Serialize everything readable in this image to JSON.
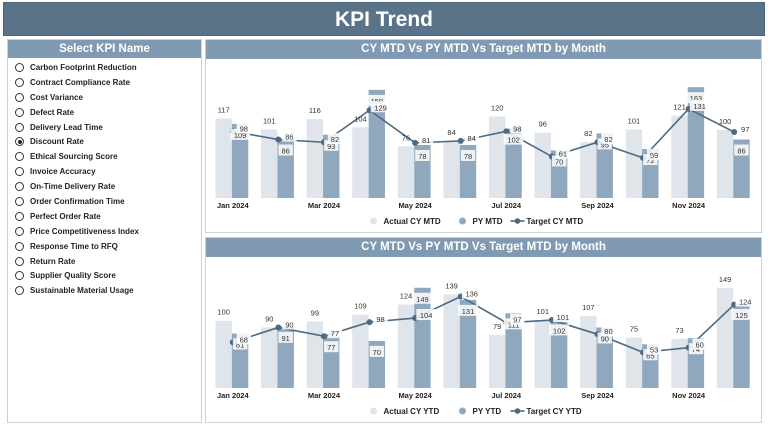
{
  "page_title": "KPI Trend",
  "slicer": {
    "title": "Select KPI Name",
    "selected_index": 5,
    "items": [
      "Carbon Footprint Reduction",
      "Contract Compliance Rate",
      "Cost Variance",
      "Defect Rate",
      "Delivery Lead Time",
      "Discount Rate",
      "Ethical Sourcing Score",
      "Invoice Accuracy",
      "On-Time Delivery Rate",
      "Order Confirmation Time",
      "Perfect Order Rate",
      "Price Competitiveness Index",
      "Response Time to RFQ",
      "Return Rate",
      "Supplier Quality Score",
      "Sustainable Material Usage"
    ]
  },
  "colors": {
    "header": "#5b7388",
    "panel_header": "#7f9ab2",
    "actual": "#dfe5eb",
    "prior": "#8fa8be",
    "target": "#4e6a82"
  },
  "chart_data": [
    {
      "type": "bar",
      "title": "CY MTD Vs PY MTD Vs Target MTD by Month",
      "categories": [
        "Jan 2024",
        "Feb 2024",
        "Mar 2024",
        "Apr 2024",
        "May 2024",
        "Jun 2024",
        "Jul 2024",
        "Aug 2024",
        "Sep 2024",
        "Oct 2024",
        "Nov 2024",
        "Dec 2024"
      ],
      "x_tick_labels": [
        "Jan 2024",
        "",
        "Mar 2024",
        "",
        "May 2024",
        "",
        "Jul 2024",
        "",
        "Sep 2024",
        "",
        "Nov 2024",
        ""
      ],
      "series": [
        {
          "name": "Actual CY MTD",
          "kind": "bar",
          "values": [
            117,
            101,
            116,
            104,
            76,
            84,
            120,
            96,
            82,
            101,
            121,
            100
          ]
        },
        {
          "name": "PY MTD",
          "kind": "bar",
          "values": [
            109,
            86,
            93,
            159,
            78,
            78,
            102,
            70,
            95,
            72,
            163,
            86
          ]
        },
        {
          "name": "Target CY MTD",
          "kind": "line",
          "values": [
            98,
            86,
            82,
            129,
            81,
            84,
            98,
            61,
            82,
            59,
            131,
            97
          ]
        }
      ],
      "ylim": [
        0,
        175
      ],
      "legend_position": "bottom"
    },
    {
      "type": "bar",
      "title": "CY MTD Vs PY MTD Vs Target MTD by Month",
      "categories": [
        "Jan 2024",
        "Feb 2024",
        "Mar 2024",
        "Apr 2024",
        "May 2024",
        "Jun 2024",
        "Jul 2024",
        "Aug 2024",
        "Sep 2024",
        "Oct 2024",
        "Nov 2024",
        "Dec 2024"
      ],
      "x_tick_labels": [
        "Jan 2024",
        "",
        "Mar 2024",
        "",
        "May 2024",
        "",
        "Jul 2024",
        "",
        "Sep 2024",
        "",
        "Nov 2024",
        ""
      ],
      "series": [
        {
          "name": "Actual CY YTD",
          "kind": "bar",
          "values": [
            100,
            90,
            99,
            109,
            124,
            139,
            79,
            101,
            107,
            75,
            73,
            149
          ]
        },
        {
          "name": "PY YTD",
          "kind": "bar",
          "values": [
            81,
            91,
            77,
            70,
            149,
            131,
            111,
            102,
            90,
            65,
            74,
            125
          ]
        },
        {
          "name": "Target CY YTD",
          "kind": "line",
          "values": [
            68,
            90,
            77,
            98,
            104,
            136,
            97,
            101,
            80,
            53,
            60,
            124
          ]
        }
      ],
      "ylim": [
        0,
        165
      ],
      "legend_position": "bottom"
    }
  ]
}
